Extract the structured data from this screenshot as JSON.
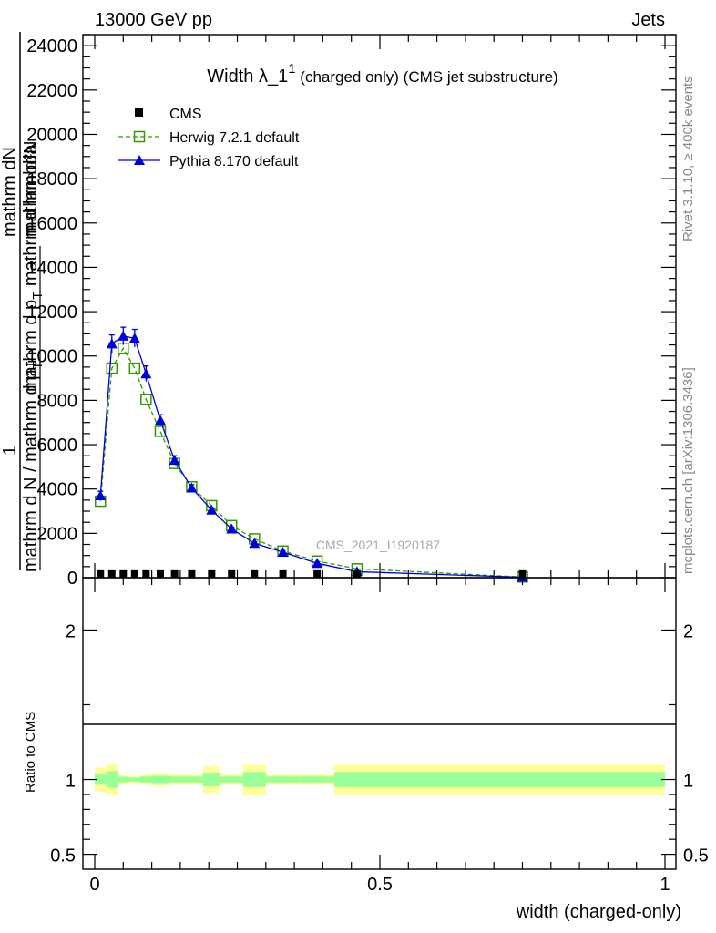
{
  "header": {
    "left": "13000 GeV pp",
    "right": "Jets"
  },
  "side_text": {
    "top": "Rivet 3.1.10, ≥ 400k events",
    "bottom": "mcplots.cern.ch [arXiv:1306.3436]"
  },
  "watermark": "CMS_2021_I1920187",
  "colors": {
    "cms": "#000000",
    "herwig": "#339900",
    "pythia": "#0000dd",
    "band_outer": "#ffff99",
    "band_inner": "#99ff99"
  },
  "chart_data": {
    "type": "line",
    "title": {
      "main": "Width λ_1",
      "superscript": "1",
      "rest": " (charged only) (CMS jet substructure)"
    },
    "ylabel": {
      "prefix": "1",
      "num_top": "mathrm d²N",
      "den_top": "mathrm d p",
      "den_sub": "T",
      "den_tail": " mathrm d lambda",
      "num_bot": "mathrm dN",
      "den_bot": "mathrm d N / mathrm d p",
      "den_bot_sub": "T"
    },
    "xlabel": "width (charged-only)",
    "xlim": [
      0,
      1
    ],
    "ylim": [
      0,
      24500
    ],
    "x_ticks": [
      {
        "v": 0,
        "label": "0"
      },
      {
        "v": 0.5,
        "label": "0.5"
      },
      {
        "v": 1,
        "label": "1"
      }
    ],
    "y_ticks": [
      {
        "v": 0,
        "label": "0"
      },
      {
        "v": 2000,
        "label": "2000"
      },
      {
        "v": 4000,
        "label": "4000"
      },
      {
        "v": 6000,
        "label": "6000"
      },
      {
        "v": 8000,
        "label": "8000"
      },
      {
        "v": 10000,
        "label": "10000"
      },
      {
        "v": 12000,
        "label": "12000"
      },
      {
        "v": 14000,
        "label": "14000"
      },
      {
        "v": 16000,
        "label": "16000"
      },
      {
        "v": 18000,
        "label": "18000"
      },
      {
        "v": 20000,
        "label": "20000"
      },
      {
        "v": 22000,
        "label": "22000"
      },
      {
        "v": 24000,
        "label": "24000"
      }
    ],
    "legend": {
      "position": "top-left",
      "cms": "CMS",
      "herwig": "Herwig 7.2.1 default",
      "pythia": "Pythia 8.170 default"
    },
    "series": [
      {
        "name": "CMS",
        "x": [
          0.01,
          0.03,
          0.05,
          0.07,
          0.09,
          0.115,
          0.14,
          0.17,
          0.205,
          0.24,
          0.28,
          0.33,
          0.39,
          0.46,
          0.75
        ],
        "values": [
          5,
          5,
          5,
          5,
          5,
          5,
          5,
          5,
          5,
          5,
          5,
          5,
          5,
          5,
          5
        ]
      },
      {
        "name": "Herwig 7.2.1 default",
        "x": [
          0.01,
          0.03,
          0.05,
          0.07,
          0.09,
          0.115,
          0.14,
          0.17,
          0.205,
          0.24,
          0.28,
          0.33,
          0.39,
          0.46,
          0.75
        ],
        "values": [
          3450,
          9450,
          10350,
          9450,
          8050,
          6600,
          5150,
          4100,
          3250,
          2350,
          1750,
          1200,
          750,
          400,
          30
        ]
      },
      {
        "name": "Pythia 8.170 default",
        "x": [
          0.01,
          0.03,
          0.05,
          0.07,
          0.09,
          0.115,
          0.14,
          0.17,
          0.205,
          0.24,
          0.28,
          0.33,
          0.39,
          0.46,
          0.75
        ],
        "values": [
          3700,
          10550,
          10900,
          10800,
          9200,
          7100,
          5300,
          4050,
          3050,
          2200,
          1550,
          1150,
          650,
          270,
          20
        ],
        "errors": [
          200,
          400,
          400,
          400,
          350,
          250,
          200,
          150,
          100,
          80,
          70,
          50,
          40,
          30,
          10
        ]
      }
    ],
    "ratio": {
      "ylabel": "Ratio to CMS",
      "ylim": [
        0.4,
        2.35
      ],
      "y_ticks": [
        {
          "v": 0.5,
          "label": "0.5"
        },
        {
          "v": 1,
          "label": "1"
        },
        {
          "v": 2,
          "label": "2"
        }
      ],
      "bin_edges": [
        0,
        0.02,
        0.04,
        0.06,
        0.08,
        0.1,
        0.13,
        0.15,
        0.19,
        0.22,
        0.26,
        0.3,
        0.36,
        0.42,
        0.5,
        1.0
      ],
      "outer_half": [
        0.08,
        0.1,
        0.03,
        0.025,
        0.035,
        0.045,
        0.035,
        0.035,
        0.09,
        0.035,
        0.1,
        0.035,
        0.035,
        0.1,
        0.1
      ],
      "inner_half": [
        0.035,
        0.055,
        0.018,
        0.014,
        0.02,
        0.025,
        0.02,
        0.02,
        0.045,
        0.02,
        0.05,
        0.02,
        0.02,
        0.05,
        0.05
      ]
    }
  }
}
